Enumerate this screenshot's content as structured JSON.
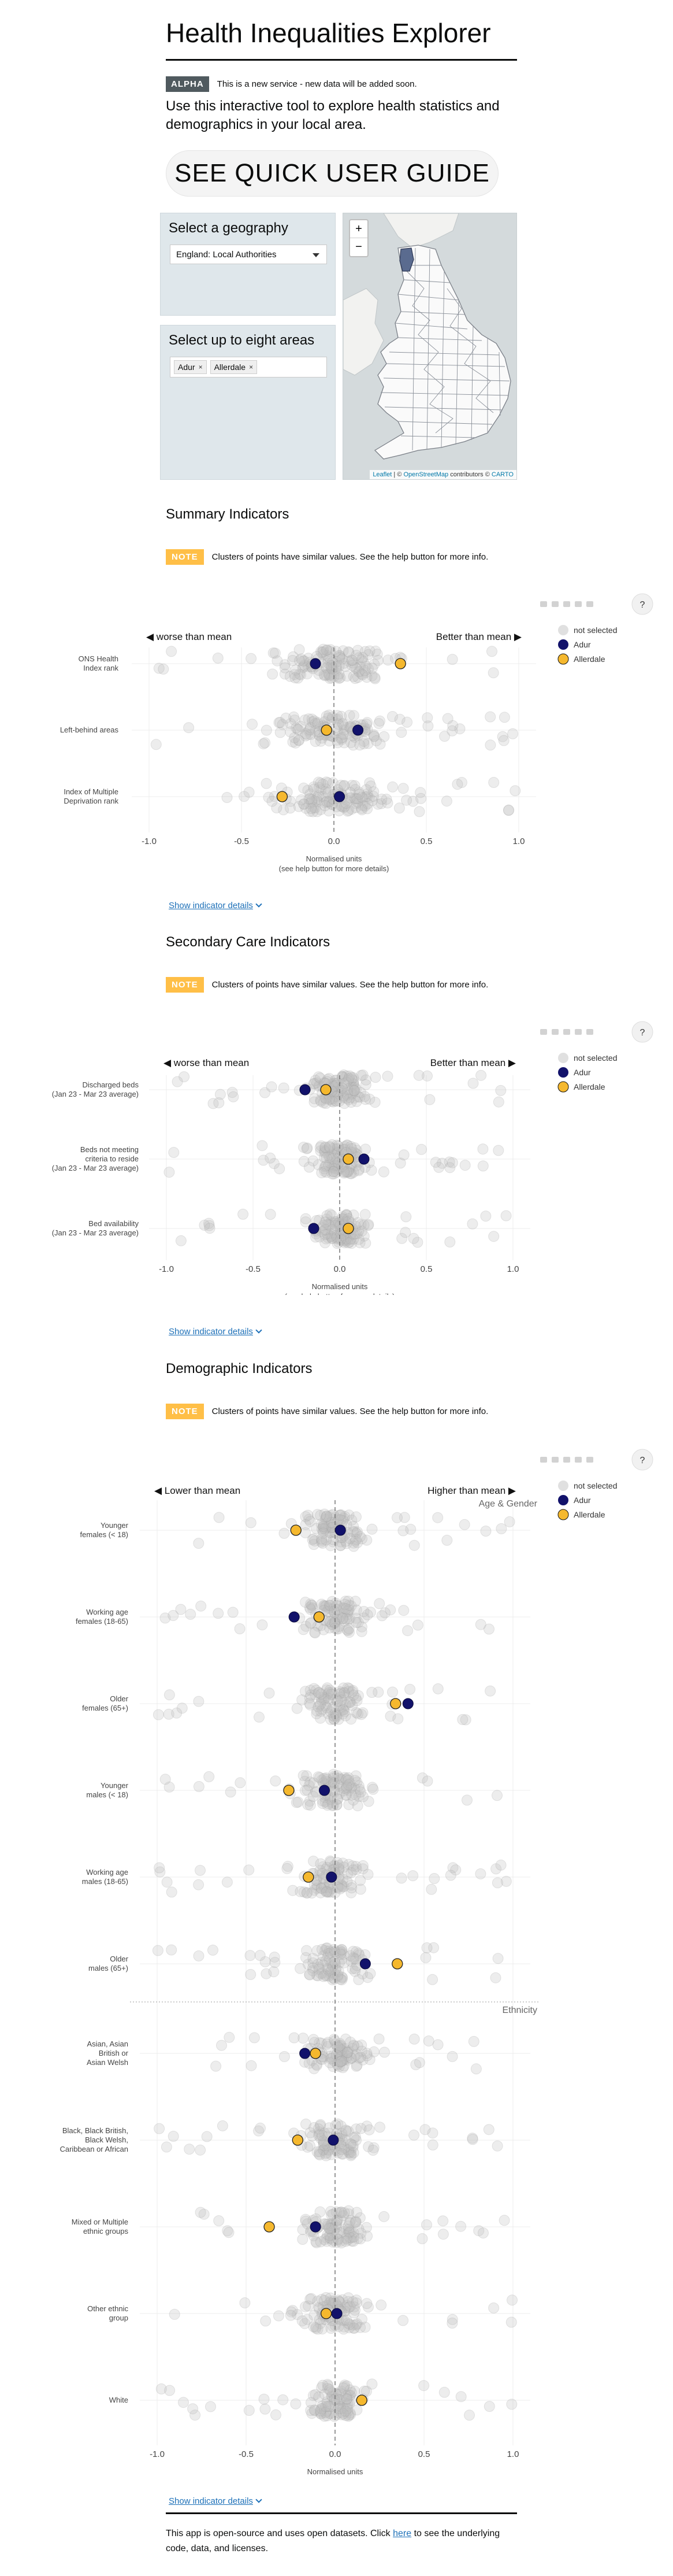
{
  "header": {
    "title": "Health Inequalities Explorer",
    "alpha_label": "ALPHA",
    "alpha_text": "This is a new service - new data will be added soon.",
    "intro": "Use this interactive tool to explore health statistics and demographics in your local area.",
    "guide_button": "SEE QUICK USER GUIDE"
  },
  "geography": {
    "heading": "Select a geography",
    "selected": "England: Local Authorities"
  },
  "areas": {
    "heading": "Select up to eight areas",
    "chips": [
      "Adur",
      "Allerdale"
    ],
    "remove_symbol": "×"
  },
  "map": {
    "zoom_in": "+",
    "zoom_out": "−",
    "attribution_leaflet": "Leaflet",
    "attribution_osm": "OpenStreetMap",
    "attribution_mid": " | © ",
    "attribution_tail": " contributors © ",
    "attribution_carto": "CARTO"
  },
  "note": {
    "label": "NOTE",
    "text": "Clusters of points have similar values. See the help button for more info."
  },
  "legend": {
    "not_selected": "not selected",
    "area1": "Adur",
    "area2": "Allerdale"
  },
  "colors": {
    "area1": "#12126b",
    "area2": "#f5b82e",
    "not_selected": "#cccccc"
  },
  "help_button": "?",
  "details_link": "Show indicator details",
  "axis_label_line1": "Normalised units",
  "axis_label_line2": "(see help button for more details)",
  "sections": [
    {
      "title": "Summary Indicators",
      "left_label": "◀  worse than mean",
      "right_label": "Better than mean  ▶",
      "rows": [
        {
          "label": [
            "ONS Health",
            "Index rank"
          ],
          "area1": -0.1,
          "area2": 0.36
        },
        {
          "label": [
            "Left-behind areas"
          ],
          "area1": 0.13,
          "area2": -0.04
        },
        {
          "label": [
            "Index of Multiple",
            "Deprivation rank"
          ],
          "area1": 0.03,
          "area2": -0.28
        }
      ]
    },
    {
      "title": "Secondary Care Indicators",
      "left_label": "◀  worse than mean",
      "right_label": "Better than mean  ▶",
      "rows": [
        {
          "label": [
            "Discharged beds",
            "(Jan 23 - Mar 23 average)"
          ],
          "area1": -0.2,
          "area2": -0.08
        },
        {
          "label": [
            "Beds not meeting",
            "criteria to reside",
            "(Jan 23 - Mar 23 average)"
          ],
          "area1": 0.14,
          "area2": 0.05
        },
        {
          "label": [
            "Bed availability",
            "(Jan 23 - Mar 23 average)"
          ],
          "area1": -0.15,
          "area2": 0.05
        }
      ]
    },
    {
      "title": "Demographic Indicators",
      "left_label": "◀  Lower than mean",
      "right_label": "Higher than mean  ▶",
      "group1": "Age & Gender",
      "group2": "Ethnicity",
      "rows": [
        {
          "label": [
            "Younger",
            "females (< 18)"
          ],
          "area1": 0.03,
          "area2": -0.22
        },
        {
          "label": [
            "Working age",
            "females (18-65)"
          ],
          "area1": -0.23,
          "area2": -0.09
        },
        {
          "label": [
            "Older",
            "females (65+)"
          ],
          "area1": 0.41,
          "area2": 0.34
        },
        {
          "label": [
            "Younger",
            "males (< 18)"
          ],
          "area1": -0.06,
          "area2": -0.26
        },
        {
          "label": [
            "Working age",
            "males (18-65)"
          ],
          "area1": -0.02,
          "area2": -0.15
        },
        {
          "label": [
            "Older",
            "males (65+)"
          ],
          "area1": 0.17,
          "area2": 0.35
        },
        {
          "label": [
            "Asian, Asian",
            "British or",
            "Asian Welsh"
          ],
          "area1": -0.17,
          "area2": -0.11
        },
        {
          "label": [
            "Black, Black British,",
            "Black Welsh,",
            "Caribbean or African"
          ],
          "area1": -0.01,
          "area2": -0.21
        },
        {
          "label": [
            "Mixed or Multiple",
            "ethnic groups"
          ],
          "area1": -0.11,
          "area2": -0.37
        },
        {
          "label": [
            "Other ethnic",
            "group"
          ],
          "area1": 0.01,
          "area2": -0.05
        },
        {
          "label": [
            "White"
          ],
          "area1": 0.15,
          "area2": 0.15
        }
      ]
    }
  ],
  "chart_data": [
    {
      "type": "scatter",
      "title": "Summary Indicators",
      "xlabel": "Normalised units",
      "xlim": [
        -1.0,
        1.0
      ],
      "ticks": [
        "-1.0",
        "-0.5",
        "0.0",
        "0.5",
        "1.0"
      ],
      "categories": [
        "ONS Health Index rank",
        "Left-behind areas",
        "Index of Multiple Deprivation rank"
      ],
      "series": [
        {
          "name": "Adur",
          "values": [
            -0.1,
            0.13,
            0.03
          ]
        },
        {
          "name": "Allerdale",
          "values": [
            0.36,
            -0.04,
            -0.28
          ]
        }
      ]
    },
    {
      "type": "scatter",
      "title": "Secondary Care Indicators",
      "xlabel": "Normalised units",
      "xlim": [
        -1.0,
        1.0
      ],
      "ticks": [
        "-1.0",
        "-0.5",
        "0.0",
        "0.5",
        "1.0"
      ],
      "categories": [
        "Discharged beds (Jan 23 - Mar 23 average)",
        "Beds not meeting criteria to reside (Jan 23 - Mar 23 average)",
        "Bed availability (Jan 23 - Mar 23 average)"
      ],
      "series": [
        {
          "name": "Adur",
          "values": [
            -0.2,
            0.14,
            -0.15
          ]
        },
        {
          "name": "Allerdale",
          "values": [
            -0.08,
            0.05,
            0.05
          ]
        }
      ]
    },
    {
      "type": "scatter",
      "title": "Demographic Indicators",
      "xlabel": "Normalised units",
      "xlim": [
        -1.0,
        1.0
      ],
      "ticks": [
        "-1.0",
        "-0.5",
        "0.0",
        "0.5",
        "1.0"
      ],
      "categories": [
        "Younger females (< 18)",
        "Working age females (18-65)",
        "Older females (65+)",
        "Younger males (< 18)",
        "Working age males (18-65)",
        "Older males (65+)",
        "Asian, Asian British or Asian Welsh",
        "Black, Black British, Black Welsh, Caribbean or African",
        "Mixed or Multiple ethnic groups",
        "Other ethnic group",
        "White"
      ],
      "series": [
        {
          "name": "Adur",
          "values": [
            0.03,
            -0.23,
            0.41,
            -0.06,
            -0.02,
            0.17,
            -0.17,
            -0.01,
            -0.11,
            0.01,
            0.15
          ]
        },
        {
          "name": "Allerdale",
          "values": [
            -0.22,
            -0.09,
            0.34,
            -0.26,
            -0.15,
            0.35,
            -0.11,
            -0.21,
            -0.37,
            -0.05,
            0.15
          ]
        }
      ]
    }
  ],
  "footer": {
    "text_before": "This app is open-source and uses open datasets. Click ",
    "link": "here",
    "text_after": " to see the underlying code, data, and licenses."
  }
}
